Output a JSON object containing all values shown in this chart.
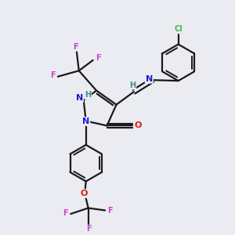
{
  "bg_color": "#ebebf2",
  "bond_color": "#1a1a1a",
  "colors": {
    "N": "#1a1add",
    "O": "#dd1a1a",
    "F": "#cc44cc",
    "Cl": "#44bb44",
    "H": "#448888",
    "C": "#1a1a1a"
  }
}
